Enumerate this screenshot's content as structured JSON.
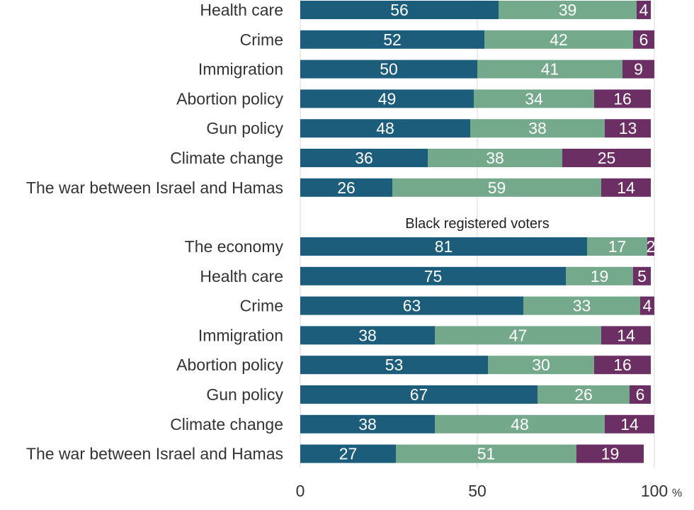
{
  "chart_data": {
    "type": "bar",
    "orientation": "horizontal",
    "stacked": true,
    "xlim": [
      0,
      100
    ],
    "x_ticks": [
      0,
      50,
      100
    ],
    "x_unit": "%",
    "grid": true,
    "colors": [
      "#1c5d7c",
      "#74a98b",
      "#6b2f63"
    ],
    "groups": [
      {
        "title": "",
        "categories": [
          "Health care",
          "Crime",
          "Immigration",
          "Abortion policy",
          "Gun policy",
          "Climate change",
          "The war between Israel and Hamas"
        ],
        "series": [
          {
            "values": [
              56,
              52,
              50,
              49,
              48,
              36,
              26
            ]
          },
          {
            "values": [
              39,
              42,
              41,
              34,
              38,
              38,
              59
            ]
          },
          {
            "values": [
              4,
              6,
              9,
              16,
              13,
              25,
              14
            ]
          }
        ]
      },
      {
        "title": "Black registered voters",
        "categories": [
          "The economy",
          "Health care",
          "Crime",
          "Immigration",
          "Abortion policy",
          "Gun policy",
          "Climate change",
          "The war between Israel and Hamas"
        ],
        "series": [
          {
            "values": [
              81,
              75,
              63,
              38,
              53,
              67,
              38,
              27
            ]
          },
          {
            "values": [
              17,
              19,
              33,
              47,
              30,
              26,
              48,
              51
            ]
          },
          {
            "values": [
              2,
              5,
              4,
              14,
              16,
              6,
              14,
              19
            ]
          }
        ]
      }
    ]
  }
}
